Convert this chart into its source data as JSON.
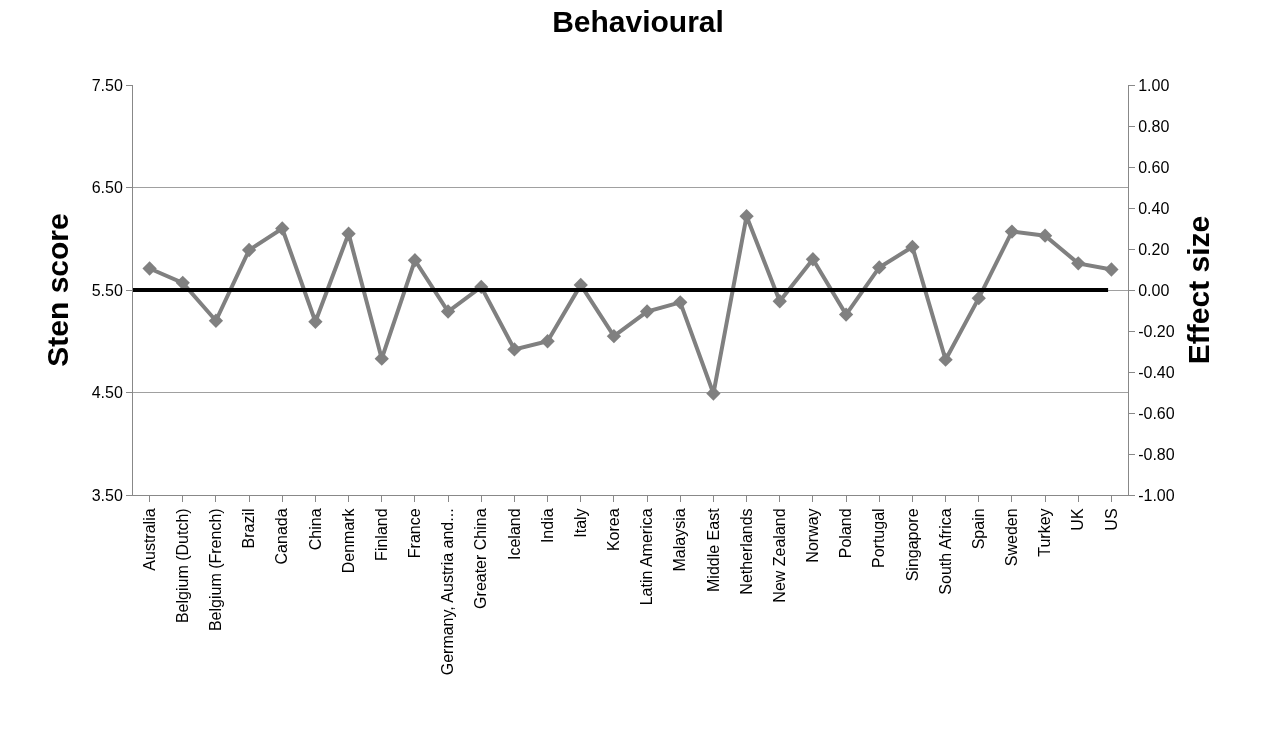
{
  "chart_data": {
    "type": "line",
    "title": "Behavioural",
    "ylabel": "Sten score",
    "y2label": "Effect size",
    "categories": [
      "Australia",
      "Belgium (Dutch)",
      "Belgium (French)",
      "Brazil",
      "Canada",
      "China",
      "Denmark",
      "Finland",
      "France",
      "Germany, Austria and...",
      "Greater China",
      "Iceland",
      "India",
      "Italy",
      "Korea",
      "Latin America",
      "Malaysia",
      "Middle East",
      "Netherlands",
      "New Zealand",
      "Norway",
      "Poland",
      "Portugal",
      "Singapore",
      "South Africa",
      "Spain",
      "Sweden",
      "Turkey",
      "UK",
      "US"
    ],
    "series": [
      {
        "color": "#808080",
        "values": [
          5.71,
          5.57,
          5.2,
          5.89,
          6.1,
          5.19,
          6.05,
          4.83,
          5.79,
          5.29,
          5.53,
          4.92,
          5.0,
          5.55,
          5.05,
          5.29,
          5.38,
          4.49,
          6.22,
          5.39,
          5.8,
          5.26,
          5.72,
          5.92,
          4.82,
          5.42,
          6.07,
          6.03,
          5.76,
          5.7
        ]
      }
    ],
    "ylim": [
      3.5,
      7.5
    ],
    "yticks": [
      {
        "value": 3.5,
        "label": "3.50"
      },
      {
        "value": 4.5,
        "label": "4.50"
      },
      {
        "value": 5.5,
        "label": "5.50"
      },
      {
        "value": 6.5,
        "label": "6.50"
      },
      {
        "value": 7.5,
        "label": "7.50"
      }
    ],
    "y2lim": [
      -1,
      1
    ],
    "y2ticks": [
      {
        "value": -1,
        "label": "-1.00"
      },
      {
        "value": -0.8,
        "label": "-0.80"
      },
      {
        "value": -0.6,
        "label": "-0.60"
      },
      {
        "value": -0.4,
        "label": "-0.40"
      },
      {
        "value": -0.2,
        "label": "-0.20"
      },
      {
        "value": 0,
        "label": "0.00"
      },
      {
        "value": 0.2,
        "label": "0.20"
      },
      {
        "value": 0.4,
        "label": "0.40"
      },
      {
        "value": 0.6,
        "label": "0.60"
      },
      {
        "value": 0.8,
        "label": "0.80"
      },
      {
        "value": 1,
        "label": "1.00"
      }
    ],
    "ref_lines": [
      {
        "axis": "y",
        "value": 5.5,
        "color": "#000000"
      }
    ],
    "grid": "y",
    "marker": "diamond",
    "line_style": "solid"
  }
}
